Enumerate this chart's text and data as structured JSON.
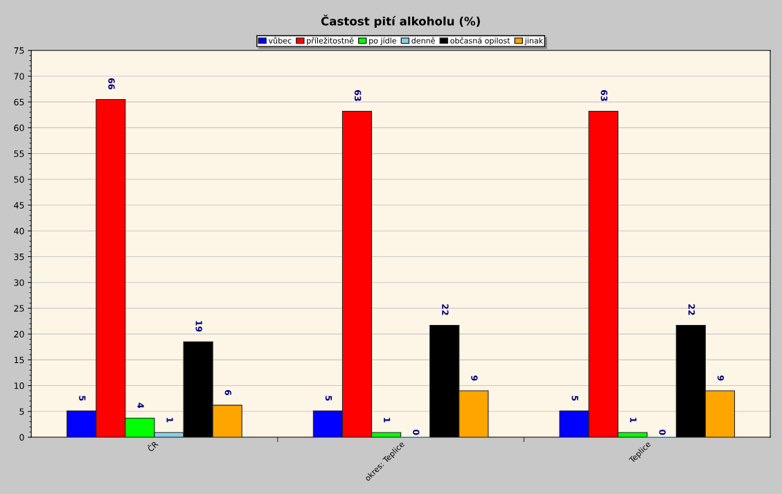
{
  "chart_data": {
    "type": "bar",
    "title": "Častost pití alkoholu (%)",
    "categories": [
      "ČR",
      "okres: Teplice",
      "Teplice"
    ],
    "series": [
      {
        "name": "vůbec",
        "color": "#0000ff",
        "values": [
          5.1,
          5.1,
          5.1
        ],
        "value_labels": [
          "5",
          "5",
          "5"
        ]
      },
      {
        "name": "příležitostně",
        "color": "#ff0000",
        "values": [
          65.5,
          63.2,
          63.2
        ],
        "value_labels": [
          "66",
          "63",
          "63"
        ]
      },
      {
        "name": "po jídle",
        "color": "#00ff00",
        "values": [
          3.7,
          0.9,
          0.9
        ],
        "value_labels": [
          "4",
          "1",
          "1"
        ]
      },
      {
        "name": "denně",
        "color": "#87ceeb",
        "values": [
          0.9,
          0,
          0
        ],
        "value_labels": [
          "1",
          "0",
          "0"
        ]
      },
      {
        "name": "občasná opilost",
        "color": "#000000",
        "values": [
          18.5,
          21.7,
          21.7
        ],
        "value_labels": [
          "19",
          "22",
          "22"
        ]
      },
      {
        "name": "jinak",
        "color": "#ffa500",
        "values": [
          6.2,
          9.0,
          9.0
        ],
        "value_labels": [
          "6",
          "9",
          "9"
        ]
      }
    ],
    "ylim": [
      0,
      75
    ],
    "yticks": [
      0,
      5,
      10,
      15,
      20,
      25,
      30,
      35,
      40,
      45,
      50,
      55,
      60,
      65,
      70,
      75
    ],
    "grid": "y",
    "legend": "top"
  }
}
